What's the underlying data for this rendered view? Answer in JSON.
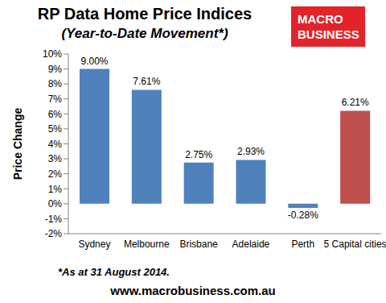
{
  "chart_data": {
    "type": "bar",
    "title": "RP Data Home Price Indices",
    "subtitle": "(Year-to-Date Movement*)",
    "y_label": "Price Change",
    "annotations": {
      "footnote": "*As at 31 August 2014.",
      "source": "www.macrobusiness.com.au",
      "logo": [
        "MACRO",
        "BUSINESS"
      ]
    },
    "categories": [
      "Sydney",
      "Melbourne",
      "Brisbane",
      "Adelaide",
      "Perth",
      "5 Capital cities"
    ],
    "values": [
      9.0,
      7.61,
      2.75,
      2.93,
      -0.28,
      6.21
    ],
    "value_labels": [
      "9.00%",
      "7.61%",
      "2.75%",
      "2.93%",
      "-0.28%",
      "6.21%"
    ],
    "colors": [
      "#4f81bd",
      "#4f81bd",
      "#4f81bd",
      "#4f81bd",
      "#4f81bd",
      "#c0504d"
    ],
    "data_labels": true,
    "grid": false,
    "ylim": [
      -2,
      10
    ],
    "yticks": [
      {
        "value": -2,
        "label": "-2%"
      },
      {
        "value": -1,
        "label": "-1%"
      },
      {
        "value": 0,
        "label": "0%"
      },
      {
        "value": 1,
        "label": "1%"
      },
      {
        "value": 2,
        "label": "2%"
      },
      {
        "value": 3,
        "label": "3%"
      },
      {
        "value": 4,
        "label": "4%"
      },
      {
        "value": 5,
        "label": "5%"
      },
      {
        "value": 6,
        "label": "6%"
      },
      {
        "value": 7,
        "label": "7%"
      },
      {
        "value": 8,
        "label": "8%"
      },
      {
        "value": 9,
        "label": "9%"
      },
      {
        "value": 10,
        "label": "10%"
      }
    ]
  }
}
